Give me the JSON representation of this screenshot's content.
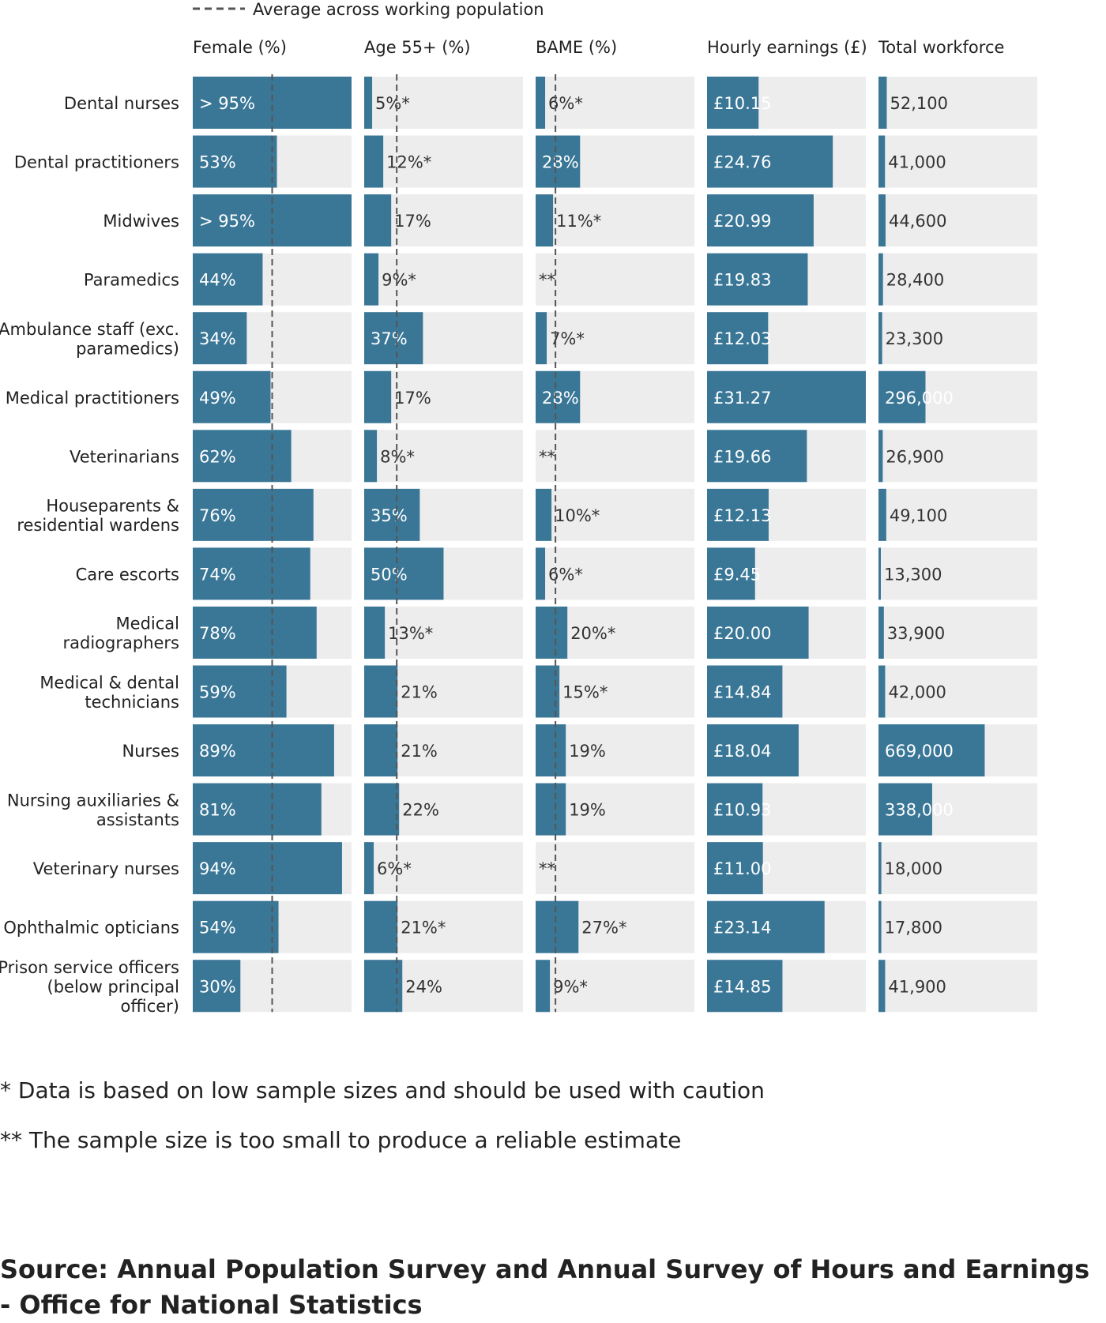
{
  "chart_data": {
    "type": "bar",
    "legend": {
      "label": "Average across working population",
      "style": "dashed-line",
      "position": "top"
    },
    "panels": [
      {
        "key": "female",
        "title": "Female (%)",
        "max": 100,
        "avg": 50,
        "labels": [
          "> 95%",
          "53%",
          "> 95%",
          "44%",
          "34%",
          "49%",
          "62%",
          "76%",
          "74%",
          "78%",
          "59%",
          "89%",
          "81%",
          "94%",
          "54%",
          "30%"
        ],
        "values": [
          100,
          53,
          100,
          44,
          34,
          49,
          62,
          76,
          74,
          78,
          59,
          89,
          81,
          94,
          54,
          30
        ]
      },
      {
        "key": "age55",
        "title": "Age 55+ (%)",
        "max": 100,
        "avg": 20.5,
        "labels": [
          "5%*",
          "12%*",
          "17%",
          "9%*",
          "37%",
          "17%",
          "8%*",
          "35%",
          "50%",
          "13%*",
          "21%",
          "21%",
          "22%",
          "6%*",
          "21%*",
          "24%"
        ],
        "values": [
          5,
          12,
          17,
          9,
          37,
          17,
          8,
          35,
          50,
          13,
          21,
          21,
          22,
          6,
          21,
          24
        ]
      },
      {
        "key": "bame",
        "title": "BAME (%)",
        "max": 100,
        "avg": 12.5,
        "labels": [
          "6%*",
          "28%",
          "11%*",
          "**",
          "7%*",
          "28%",
          "**",
          "10%*",
          "6%*",
          "20%*",
          "15%*",
          "19%",
          "19%",
          "**",
          "27%*",
          "9%*"
        ],
        "values": [
          6,
          28,
          11,
          null,
          7,
          28,
          null,
          10,
          6,
          20,
          15,
          19,
          19,
          null,
          27,
          9
        ]
      },
      {
        "key": "earnings",
        "title": "Hourly earnings (£)",
        "max": 31.27,
        "avg": null,
        "labels": [
          "£10.15",
          "£24.76",
          "£20.99",
          "£19.83",
          "£12.03",
          "£31.27",
          "£19.66",
          "£12.13",
          "£9.45",
          "£20.00",
          "£14.84",
          "£18.04",
          "£10.93",
          "£11.00",
          "£23.14",
          "£14.85"
        ],
        "values": [
          10.15,
          24.76,
          20.99,
          19.83,
          12.03,
          31.27,
          19.66,
          12.13,
          9.45,
          20.0,
          14.84,
          18.04,
          10.93,
          11.0,
          23.14,
          14.85
        ]
      },
      {
        "key": "workforce",
        "title": "Total workforce",
        "max": 1000000,
        "avg": null,
        "labels": [
          "52,100",
          "41,000",
          "44,600",
          "28,400",
          "23,300",
          "296,000",
          "26,900",
          "49,100",
          "13,300",
          "33,900",
          "42,000",
          "669,000",
          "338,000",
          "18,000",
          "17,800",
          "41,900"
        ],
        "values": [
          52100,
          41000,
          44600,
          28400,
          23300,
          296000,
          26900,
          49100,
          13300,
          33900,
          42000,
          669000,
          338000,
          18000,
          17800,
          41900
        ]
      }
    ],
    "categories": [
      [
        "Dental nurses"
      ],
      [
        "Dental practitioners"
      ],
      [
        "Midwives"
      ],
      [
        "Paramedics"
      ],
      [
        "Ambulance staff (exc.",
        "paramedics)"
      ],
      [
        "Medical practitioners"
      ],
      [
        "Veterinarians"
      ],
      [
        "Houseparents &",
        "residential wardens"
      ],
      [
        "Care escorts"
      ],
      [
        "Medical",
        "radiographers"
      ],
      [
        "Medical & dental",
        "technicians"
      ],
      [
        "Nurses"
      ],
      [
        "Nursing auxiliaries &",
        "assistants"
      ],
      [
        "Veterinary nurses"
      ],
      [
        "Ophthalmic opticians"
      ],
      [
        "Prison service officers",
        "(below principal",
        "officer)"
      ]
    ],
    "bar_color": "#3a7797",
    "track_color": "#ededed",
    "avg_line_color": "#555555"
  },
  "notes": {
    "low_sample": "* Data is based on low sample sizes and should be used with caution",
    "too_small": "** The sample size is too small to produce a reliable estimate"
  },
  "source": "Source: Annual Population Survey and Annual Survey of Hours and Earnings - Office for National Statistics"
}
